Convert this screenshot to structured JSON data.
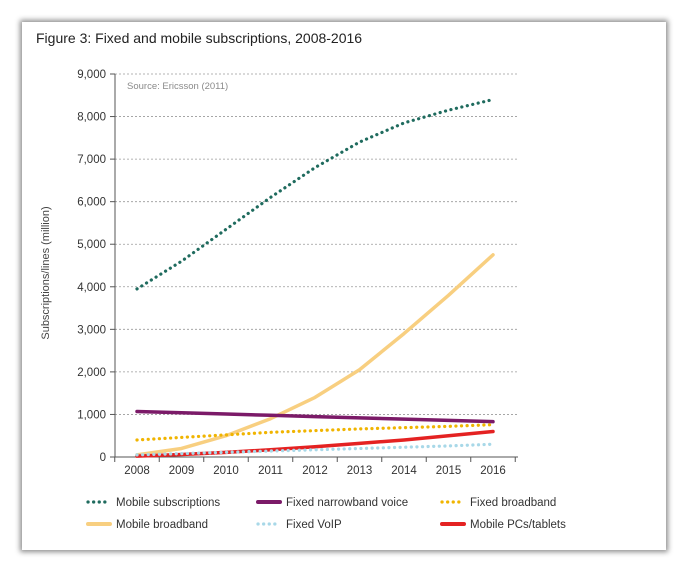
{
  "figure": {
    "title": "Figure 3: Fixed and mobile subscriptions, 2008-2016",
    "source": "Source: Ericsson (2011)"
  },
  "chart_data": {
    "type": "line",
    "title": "Figure 3: Fixed and mobile subscriptions, 2008-2016",
    "xlabel": "",
    "ylabel": "Subscriptions/lines (million)",
    "x": [
      2008,
      2009,
      2010,
      2011,
      2012,
      2013,
      2014,
      2015,
      2016
    ],
    "ylim": [
      0,
      9000
    ],
    "yticks": [
      0,
      1000,
      2000,
      3000,
      4000,
      5000,
      6000,
      7000,
      8000,
      9000
    ],
    "ytick_labels": [
      "0",
      "1,000",
      "2,000",
      "3,000",
      "4,000",
      "5,000",
      "6,000",
      "7,000",
      "8,000",
      "9,000"
    ],
    "grid": "horizontal-dotted",
    "legend_position": "bottom",
    "annotation": "Source: Ericsson (2011)",
    "series": [
      {
        "name": "Mobile subscriptions",
        "style": "dotted",
        "color": "#1f6b5e",
        "values": [
          3950,
          4600,
          5350,
          6100,
          6800,
          7400,
          7850,
          8150,
          8400
        ]
      },
      {
        "name": "Fixed narrowband voice",
        "style": "solid",
        "color": "#7b1a68",
        "values": [
          1070,
          1040,
          1010,
          980,
          950,
          920,
          890,
          860,
          830
        ]
      },
      {
        "name": "Fixed broadband",
        "style": "dotted",
        "color": "#f0b400",
        "values": [
          400,
          460,
          520,
          580,
          620,
          660,
          690,
          720,
          760
        ]
      },
      {
        "name": "Mobile broadband",
        "style": "solid",
        "color": "#f8cf80",
        "values": [
          50,
          200,
          500,
          900,
          1400,
          2050,
          2900,
          3800,
          4750
        ]
      },
      {
        "name": "Fixed VoIP",
        "style": "dotted",
        "color": "#a8d8e8",
        "values": [
          50,
          80,
          110,
          140,
          170,
          200,
          230,
          260,
          300
        ]
      },
      {
        "name": "Mobile PCs/tablets",
        "style": "solid",
        "color": "#e42222",
        "values": [
          20,
          60,
          110,
          170,
          240,
          320,
          400,
          500,
          600
        ]
      }
    ]
  }
}
